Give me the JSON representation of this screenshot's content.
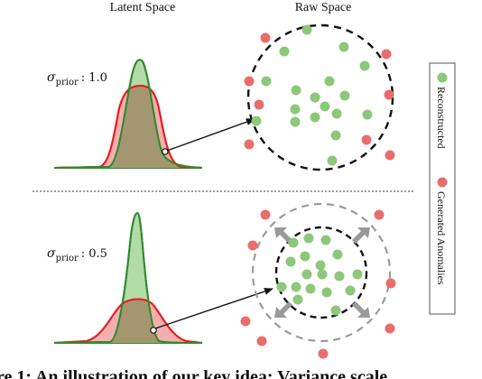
{
  "headers": {
    "latent": "Latent Space",
    "raw": "Raw Space"
  },
  "panels": [
    {
      "sigma_symbol": "σ",
      "sigma_sub": "prior",
      "sigma_value": ": 1.0"
    },
    {
      "sigma_symbol": "σ",
      "sigma_sub": "prior",
      "sigma_value": ": 0.5"
    }
  ],
  "legend": {
    "reconstructed": "Reconstructed",
    "anomalies": "Generated Anomalies"
  },
  "caption": "re 1: An illustration of our key idea: Variance scale",
  "colors": {
    "green_fill": "#8bc87a",
    "green_stroke": "#2e8b2e",
    "red_fill": "#ea6d6d",
    "red_stroke": "#e81c1c",
    "tan_fill": "#a59672"
  }
}
